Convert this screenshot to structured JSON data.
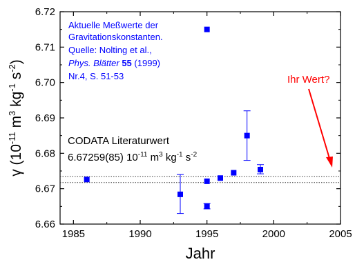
{
  "chart_data": {
    "type": "scatter",
    "xlabel": "Jahr",
    "ylabel": {
      "base": "γ (10",
      "exp1": "-11",
      "mid": " m",
      "exp2": "3",
      "mid2": " kg",
      "exp3": "-1",
      "mid3": " s",
      "exp4": "-2",
      "end": ")"
    },
    "xlim": [
      1984,
      2005
    ],
    "ylim": [
      6.66,
      6.72
    ],
    "x_ticks": [
      1985,
      1990,
      1995,
      2000,
      2005
    ],
    "y_ticks": [
      6.66,
      6.67,
      6.68,
      6.69,
      6.7,
      6.71,
      6.72
    ],
    "x_tick_labels": [
      "1985",
      "1990",
      "1995",
      "2000",
      "2005"
    ],
    "y_tick_labels": [
      "6.66",
      "6.67",
      "6.68",
      "6.69",
      "6.70",
      "6.71",
      "6.72"
    ],
    "grid": false,
    "colors": {
      "points": "#0000ff",
      "source_text": "#0000ff",
      "question": "#ff0000",
      "arrow": "#ff0000",
      "axis": "#000000",
      "reference_lines": "#333333"
    },
    "points": [
      {
        "x": 1986,
        "y": 6.6726
      },
      {
        "x": 1993,
        "y": 6.6684,
        "err": [
          6.663,
          6.674
        ]
      },
      {
        "x": 1995,
        "y": 6.715
      },
      {
        "x": 1995,
        "y": 6.6721
      },
      {
        "x": 1995,
        "y": 6.665,
        "err": [
          6.6643,
          6.6658
        ]
      },
      {
        "x": 1996,
        "y": 6.673
      },
      {
        "x": 1997,
        "y": 6.6745
      },
      {
        "x": 1998,
        "y": 6.685,
        "err": [
          6.678,
          6.692
        ]
      },
      {
        "x": 1999,
        "y": 6.6754,
        "err": [
          6.6742,
          6.6768
        ]
      }
    ],
    "reference_band": [
      6.67174,
      6.67344
    ],
    "annotations": {
      "source": {
        "line1": "Aktuelle Meßwerte der",
        "line2": "Gravitationskonstanten.",
        "line3": "Quelle: Nolting et al.,",
        "line4_italic": "Phys. Blätter",
        "line4_bold": "55",
        "line4_rest": "(1999)",
        "line5": "Nr.4, S. 51-53"
      },
      "codata": {
        "line1": "CODATA Literaturwert",
        "value": "6.67259(85) 10",
        "exp1": "-11",
        "u1": " m",
        "exp2": "3",
        "u2": " kg",
        "exp3": "-1",
        "u3": " s",
        "exp4": "-2"
      },
      "question": "Ihr Wert?"
    }
  }
}
